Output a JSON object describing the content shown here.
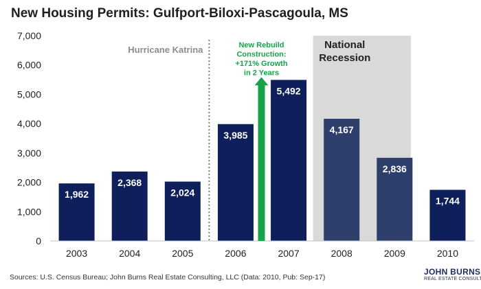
{
  "chart_data": {
    "type": "bar",
    "title": "New Housing Permits: Gulfport-Biloxi-Pascagoula, MS",
    "categories": [
      "2003",
      "2004",
      "2005",
      "2006",
      "2007",
      "2008",
      "2009",
      "2010"
    ],
    "values": [
      1962,
      2368,
      2024,
      3985,
      5492,
      4167,
      2836,
      1744
    ],
    "data_labels": [
      "1,962",
      "2,368",
      "2,024",
      "3,985",
      "5,492",
      "4,167",
      "2,836",
      "1,744"
    ],
    "ylim": [
      0,
      7000
    ],
    "yticks": [
      0,
      1000,
      2000,
      3000,
      4000,
      5000,
      6000,
      7000
    ],
    "ytick_labels": [
      "0",
      "1,000",
      "2,000",
      "3,000",
      "4,000",
      "5,000",
      "6,000",
      "7,000"
    ],
    "xlabel": "",
    "ylabel": "",
    "grid": false,
    "legend": "none",
    "colors": {
      "bar": "#0e1f5b",
      "bar_recession": "#2f3f6b",
      "recession_band": "#d9d9d9",
      "arrow": "#17a34a",
      "annotation_growth": "#17a34a",
      "annotation_katrina": "#8c8c8c",
      "annotation_recession": "#1f1f1f"
    },
    "annotations": {
      "katrina": {
        "label": "Hurricane Katrina",
        "after_category": "2005"
      },
      "growth": {
        "lines": [
          "New Rebuild",
          "Construction:",
          "+171% Growth",
          "in 2 Years"
        ],
        "from_category": "2006",
        "to_category": "2007"
      },
      "recession": {
        "lines": [
          "National",
          "Recession"
        ],
        "start_category": "2008",
        "end_category": "2009"
      }
    }
  },
  "source_note": "Sources: U.S. Census Bureau; John Burns Real Estate Consulting, LLC (Data: 2010, Pub: Sep-17)",
  "logo": {
    "main": "JOHN BURNS",
    "sub": "REAL ESTATE CONSULTING"
  }
}
